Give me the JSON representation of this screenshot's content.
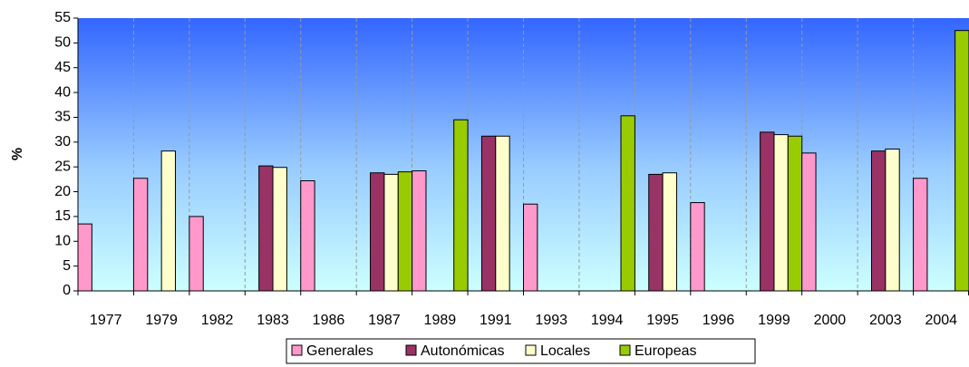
{
  "chart_data": {
    "type": "bar",
    "y_label": "%",
    "categories": [
      "1977",
      "1979",
      "1982",
      "1983",
      "1986",
      "1987",
      "1989",
      "1991",
      "1993",
      "1994",
      "1995",
      "1996",
      "1999",
      "2000",
      "2003",
      "2004"
    ],
    "series": [
      {
        "name": "Generales",
        "color": "#ff99cc",
        "values": [
          13.5,
          22.7,
          15,
          null,
          22.2,
          null,
          24.2,
          null,
          17.5,
          null,
          null,
          17.8,
          null,
          27.8,
          null,
          22.7
        ]
      },
      {
        "name": "Autonómicas",
        "color": "#993366",
        "values": [
          null,
          null,
          null,
          25.2,
          null,
          23.8,
          null,
          31.2,
          null,
          null,
          23.5,
          null,
          32,
          null,
          28.2,
          null
        ]
      },
      {
        "name": "Locales",
        "color": "#ffffcc",
        "values": [
          null,
          28.2,
          null,
          24.9,
          null,
          23.5,
          null,
          31.2,
          null,
          null,
          23.8,
          null,
          31.5,
          null,
          28.6,
          null
        ]
      },
      {
        "name": "Europeas",
        "color": "#99cc00",
        "values": [
          null,
          null,
          null,
          null,
          null,
          24,
          34.5,
          null,
          null,
          35.3,
          null,
          null,
          31.2,
          null,
          null,
          52.5
        ]
      }
    ],
    "ylim": [
      0,
      55
    ],
    "yticks": [
      0,
      5,
      10,
      15,
      20,
      25,
      30,
      35,
      40,
      45,
      50,
      55
    ],
    "grid": true,
    "legend": "bottom"
  }
}
